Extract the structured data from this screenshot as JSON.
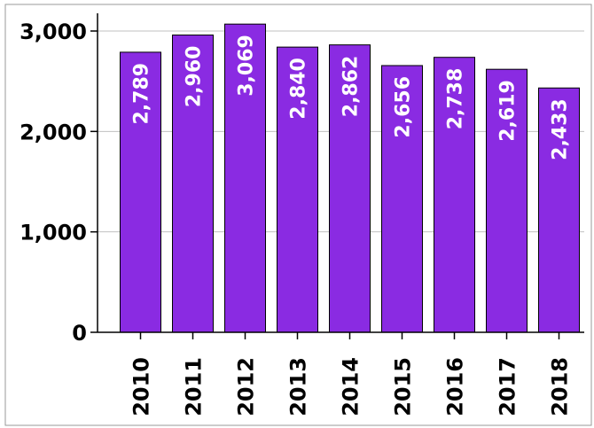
{
  "chart_data": {
    "type": "bar",
    "categories": [
      "2010",
      "2011",
      "2012",
      "2013",
      "2014",
      "2015",
      "2016",
      "2017",
      "2018"
    ],
    "values": [
      2789,
      2960,
      3069,
      2840,
      2862,
      2656,
      2738,
      2619,
      2433
    ],
    "data_labels": [
      "2,789",
      "2,960",
      "3,069",
      "2,840",
      "2,862",
      "2,656",
      "2,738",
      "2,619",
      "2,433"
    ],
    "yticks": [
      0,
      1000,
      2000,
      3000
    ],
    "ytick_labels": [
      "0",
      "1,000",
      "2,000",
      "3,000"
    ],
    "ylim": [
      0,
      3000
    ],
    "title": "",
    "xlabel": "",
    "ylabel": "",
    "grid": true,
    "legend": "none",
    "colors": {
      "bar_fill": "#8a2be2",
      "bar_stroke": "#000000",
      "gridline": "#c0c0c0",
      "axis": "#000000",
      "label_text": "#ffffff",
      "frame": "#999999"
    }
  }
}
